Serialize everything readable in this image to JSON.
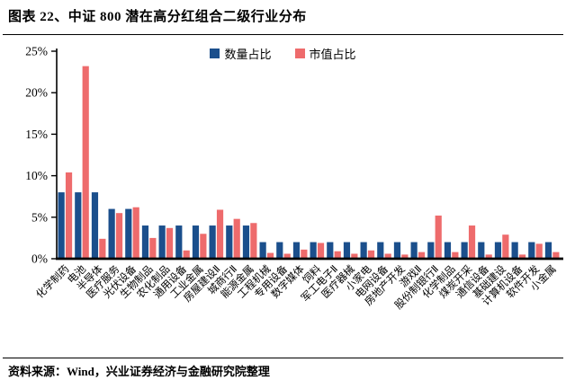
{
  "header": {
    "title": "图表 22、中证 800 潜在高分红组合二级行业分布"
  },
  "footer": {
    "source": "资料来源：Wind，兴业证券经济与金融研究院整理"
  },
  "colors": {
    "quantity_bar": "#1B4F8C",
    "market_value_bar": "#EE6B6C",
    "axis": "#000000",
    "text": "#000000"
  },
  "chart_data": {
    "type": "bar",
    "title": "中证800潜在高分红组合二级行业分布",
    "categories": [
      "化学制药",
      "电池",
      "半导体",
      "医疗服务",
      "光伏设备",
      "生物制品",
      "农化制品",
      "通用设备",
      "工业金属",
      "房屋建设Ⅱ",
      "城商行Ⅱ",
      "能源金属",
      "工程机械",
      "专用设备",
      "数字媒体",
      "饲料",
      "军工电子Ⅱ",
      "医疗器械",
      "小家电",
      "电网设备",
      "房地产开发",
      "游戏Ⅱ",
      "股份制银行Ⅱ",
      "化学制品",
      "煤炭开采",
      "通信设备",
      "基础建设",
      "计算机设备",
      "软件开发",
      "小金属"
    ],
    "series": [
      {
        "name": "数量占比",
        "color": "#1B4F8C",
        "values": [
          8,
          8,
          8,
          6,
          6,
          4,
          4,
          4,
          4,
          4,
          4,
          4,
          2,
          2,
          2,
          2,
          2,
          2,
          2,
          2,
          2,
          2,
          2,
          2,
          2,
          2,
          2,
          2,
          2,
          2
        ]
      },
      {
        "name": "市值占比",
        "color": "#EE6B6C",
        "values": [
          10.4,
          23.2,
          2.4,
          5.5,
          6.2,
          2.5,
          3.7,
          1.0,
          3.0,
          5.9,
          4.8,
          4.3,
          0.7,
          0.6,
          1.1,
          1.9,
          0.9,
          0.6,
          1.0,
          0.6,
          0.5,
          0.8,
          5.2,
          0.8,
          4.0,
          0.5,
          2.9,
          0.5,
          1.8,
          0.8
        ]
      }
    ],
    "ylim": [
      0,
      25
    ],
    "ytick_step": 5,
    "ytick_suffix": "%",
    "xlabel": "",
    "ylabel": "",
    "legend_position": "top-center",
    "grid": false,
    "x_label_rotation": -45
  }
}
